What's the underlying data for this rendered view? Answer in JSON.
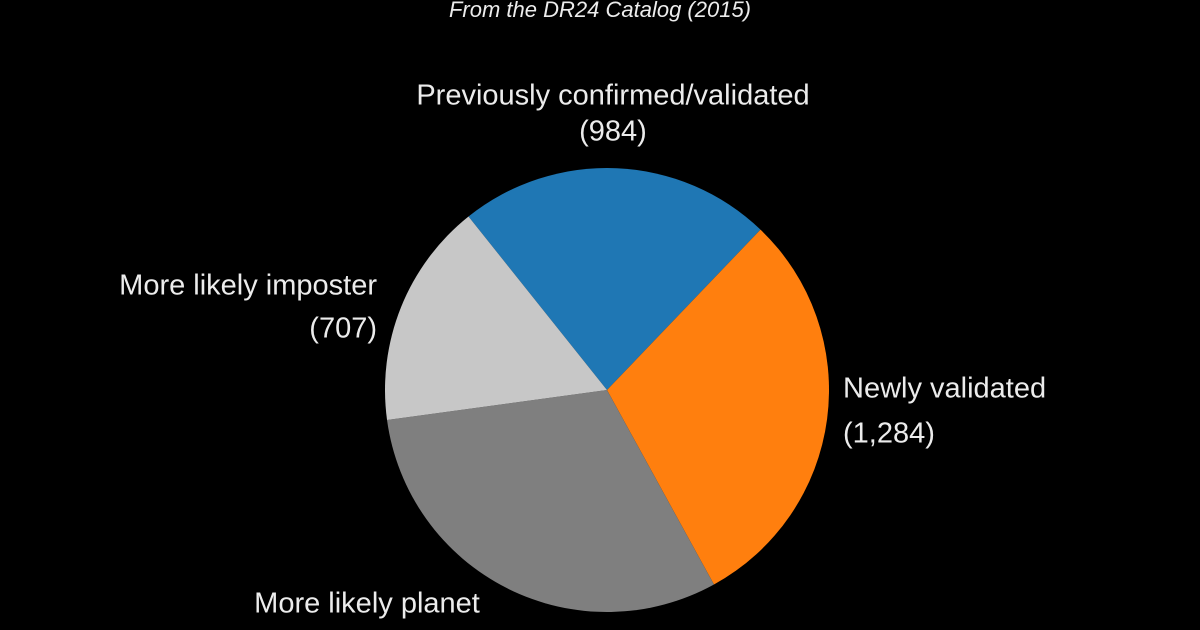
{
  "chart_data": {
    "type": "pie",
    "subtitle": "From the DR24 Catalog (2015)",
    "categories": [
      "Previously confirmed/validated",
      "Newly validated",
      "More likely planet",
      "More likely imposter"
    ],
    "values": [
      984,
      1284,
      1327,
      707
    ],
    "value_labels": [
      "(984)",
      "(1,284)",
      null,
      "(707)"
    ],
    "colors": [
      "#1f77b4",
      "#ff7f0e",
      "#7f7f7f",
      "#c7c7c7"
    ]
  }
}
